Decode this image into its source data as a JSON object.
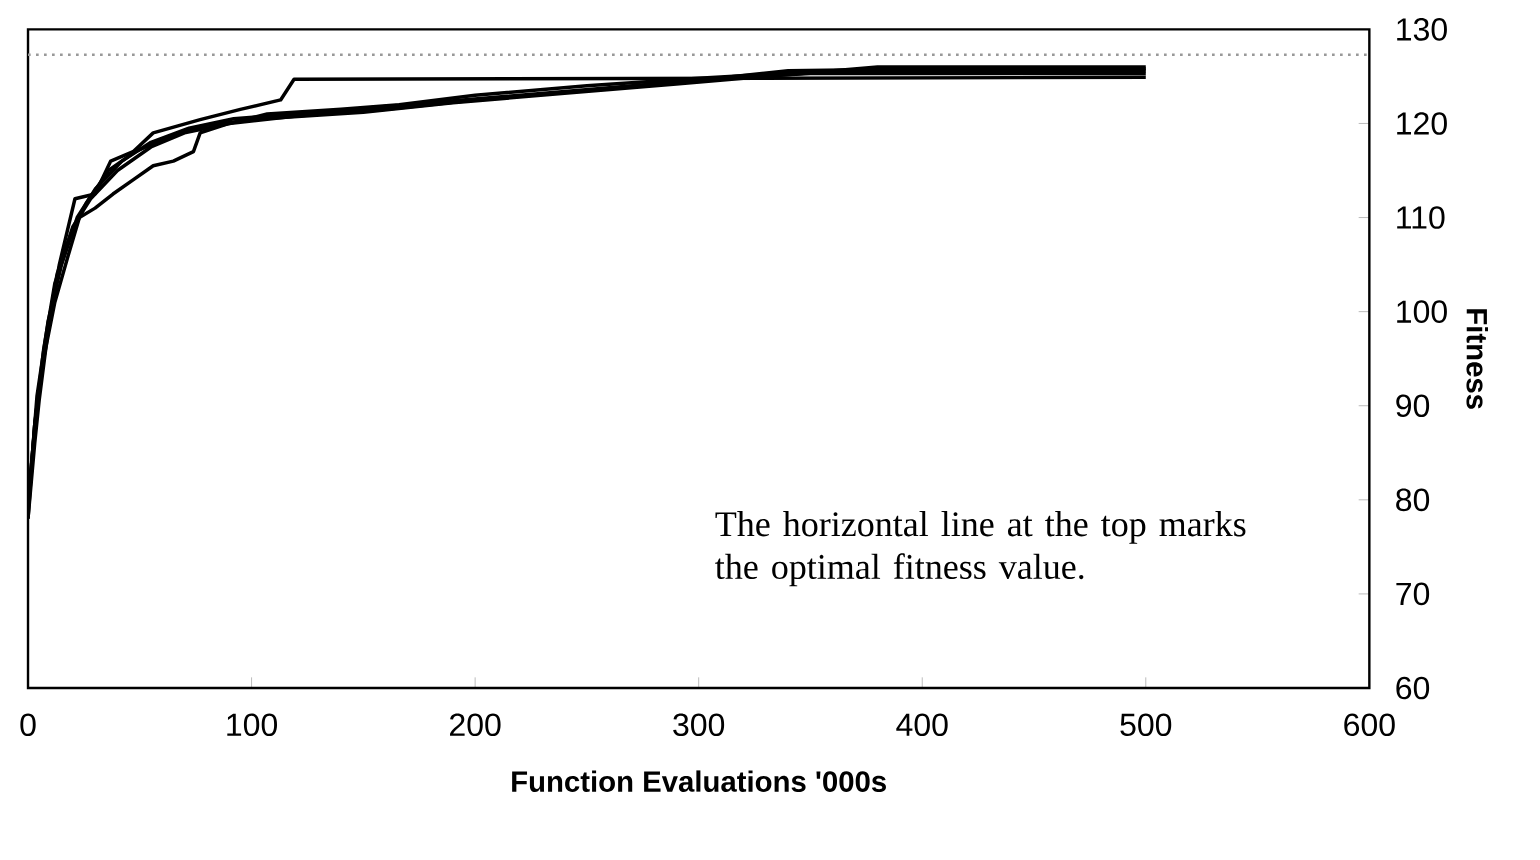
{
  "chart_data": {
    "type": "line",
    "xlabel": "Function Evaluations '000s",
    "ylabel": "Fitness",
    "xlim": [
      0,
      600
    ],
    "xticks": [
      0,
      100,
      200,
      300,
      400,
      500,
      600
    ],
    "ylim": [
      60,
      130
    ],
    "yticks": [
      60,
      70,
      80,
      90,
      100,
      110,
      120,
      130
    ],
    "ref_lines": [
      {
        "axis": "y",
        "value": 127.3,
        "color": "#999999",
        "line_style": "dotted"
      }
    ],
    "annotations": [
      "The horizontal line at the top marks the optimal fitness value."
    ],
    "series": [
      {
        "color": "#000000",
        "x": [
          0,
          3,
          5,
          9,
          14,
          21,
          30,
          37,
          47,
          56,
          77,
          95,
          113,
          119,
          500
        ],
        "values": [
          78,
          86,
          90.6,
          98,
          105,
          112,
          112.5,
          116,
          117,
          119,
          120.4,
          121.5,
          122.5,
          124.7,
          124.9
        ]
      },
      {
        "color": "#000000",
        "x": [
          0,
          3,
          7,
          12,
          18,
          23,
          30,
          38,
          47,
          56,
          65,
          74,
          77,
          90,
          107,
          140,
          166,
          200,
          250,
          300,
          350,
          400,
          500
        ],
        "values": [
          79,
          88,
          95,
          101,
          106,
          110,
          111,
          112.5,
          114,
          115.5,
          116,
          117,
          119,
          120,
          121,
          121.5,
          122,
          123,
          124,
          124.8,
          125.5,
          125.6,
          125.6
        ]
      },
      {
        "color": "#000000",
        "x": [
          0,
          4,
          8,
          13,
          20,
          28,
          40,
          55,
          70,
          90,
          120,
          160,
          200,
          250,
          300,
          340,
          400,
          500
        ],
        "values": [
          80,
          90,
          97,
          104,
          109,
          112,
          115,
          117.5,
          119,
          120,
          120.8,
          121.5,
          122.5,
          123.5,
          124.6,
          125.6,
          125.8,
          125.8
        ]
      },
      {
        "color": "#000000",
        "x": [
          0,
          4,
          9,
          15,
          22,
          30,
          42,
          55,
          72,
          92,
          120,
          160,
          210,
          260,
          310,
          350,
          420,
          500
        ],
        "values": [
          79,
          91,
          99,
          105,
          110,
          113,
          116,
          118,
          119.5,
          120.5,
          121,
          121.8,
          122.8,
          123.8,
          124.8,
          125.3,
          125.3,
          125.3
        ]
      },
      {
        "color": "#000000",
        "x": [
          0,
          3,
          7,
          12,
          19,
          26,
          36,
          48,
          62,
          80,
          105,
          150,
          190,
          240,
          290,
          330,
          380,
          500
        ],
        "values": [
          78,
          88,
          96,
          103,
          108,
          111.5,
          115,
          117,
          118.5,
          119.8,
          120.5,
          121.2,
          122.2,
          123.2,
          124.2,
          125,
          126,
          126
        ]
      }
    ]
  }
}
